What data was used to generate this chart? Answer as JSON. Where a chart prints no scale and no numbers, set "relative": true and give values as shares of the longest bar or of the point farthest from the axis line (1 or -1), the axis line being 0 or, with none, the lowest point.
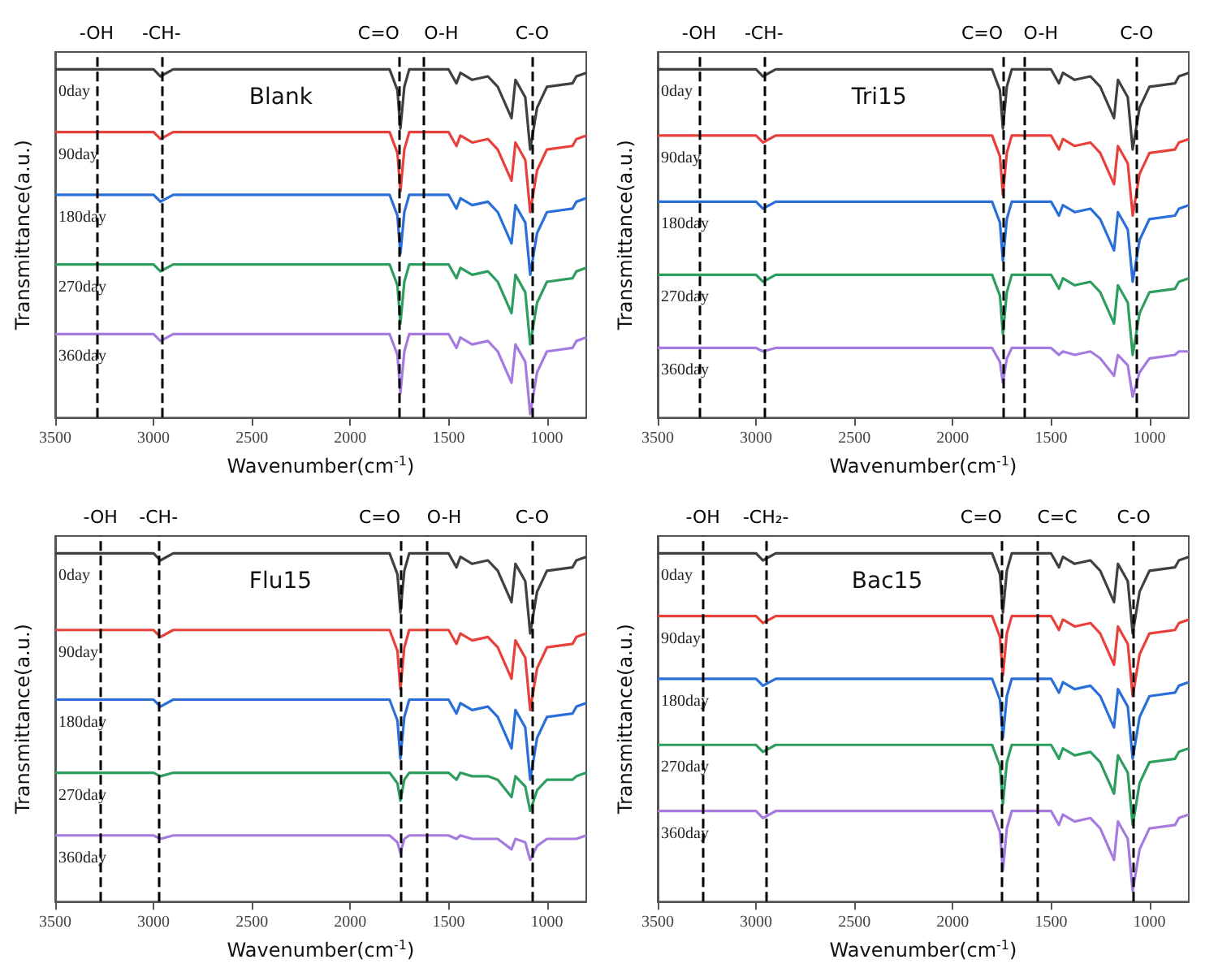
{
  "chart_data": [
    {
      "type": "line",
      "title": "Blank",
      "xlabel": "Wavenumber(cm$^{-1}$)",
      "ylabel": "Transmittance(a.u.)",
      "relative": true,
      "marker": "none",
      "xlim": [
        3500,
        800
      ],
      "xticks": [
        3500,
        3000,
        2500,
        2000,
        1500,
        1000
      ],
      "x": [
        3500,
        3000,
        2965,
        2900,
        1800,
        1760,
        1745,
        1725,
        1700,
        1500,
        1460,
        1440,
        1380,
        1300,
        1250,
        1180,
        1160,
        1110,
        1085,
        1050,
        1000,
        870,
        850,
        800
      ],
      "series": [
        {
          "name": "0day",
          "color": "#404040",
          "values": [
            1,
            1,
            0.98,
            1,
            1,
            0.94,
            0.83,
            0.95,
            1,
            1,
            0.96,
            0.99,
            0.97,
            0.98,
            0.95,
            0.86,
            0.97,
            0.92,
            0.77,
            0.89,
            0.95,
            0.96,
            0.98,
            0.99
          ]
        },
        {
          "name": "90day",
          "color": "#e8403a",
          "values": [
            0.82,
            0.82,
            0.8,
            0.82,
            0.82,
            0.76,
            0.65,
            0.77,
            0.82,
            0.82,
            0.78,
            0.81,
            0.79,
            0.8,
            0.77,
            0.68,
            0.79,
            0.74,
            0.59,
            0.71,
            0.77,
            0.78,
            0.8,
            0.81
          ]
        },
        {
          "name": "180day",
          "color": "#2a6fd8",
          "values": [
            0.64,
            0.64,
            0.62,
            0.64,
            0.64,
            0.58,
            0.47,
            0.59,
            0.64,
            0.64,
            0.6,
            0.63,
            0.61,
            0.62,
            0.59,
            0.5,
            0.61,
            0.56,
            0.41,
            0.53,
            0.59,
            0.6,
            0.62,
            0.63
          ]
        },
        {
          "name": "270day",
          "color": "#2e9e5e",
          "values": [
            0.44,
            0.44,
            0.42,
            0.44,
            0.44,
            0.38,
            0.27,
            0.39,
            0.44,
            0.44,
            0.4,
            0.43,
            0.41,
            0.42,
            0.39,
            0.3,
            0.41,
            0.36,
            0.21,
            0.33,
            0.39,
            0.4,
            0.42,
            0.43
          ]
        },
        {
          "name": "360day",
          "color": "#a57be0",
          "values": [
            0.24,
            0.24,
            0.22,
            0.24,
            0.24,
            0.18,
            0.07,
            0.19,
            0.24,
            0.24,
            0.2,
            0.23,
            0.21,
            0.22,
            0.19,
            0.1,
            0.21,
            0.16,
            0.01,
            0.13,
            0.19,
            0.2,
            0.22,
            0.23
          ]
        }
      ],
      "ref_lines": [
        {
          "axis": "x",
          "value": 3290,
          "label": "-OH",
          "line_style": "dashed",
          "color": "#000000"
        },
        {
          "axis": "x",
          "value": 2960,
          "label": "-CH-",
          "line_style": "dashed",
          "color": "#000000"
        },
        {
          "axis": "x",
          "value": 1750,
          "label": "C=O",
          "line_style": "dashed",
          "color": "#000000"
        },
        {
          "axis": "x",
          "value": 1625,
          "label": "O-H",
          "line_style": "dashed",
          "color": "#000000"
        },
        {
          "axis": "x",
          "value": 1075,
          "label": "C-O",
          "line_style": "dashed",
          "color": "#000000"
        }
      ]
    },
    {
      "type": "line",
      "title": "Tri15",
      "xlabel": "Wavenumber(cm$^{-1}$)",
      "ylabel": "Transmittance(a.u.)",
      "relative": true,
      "marker": "none",
      "xlim": [
        3500,
        800
      ],
      "xticks": [
        3500,
        3000,
        2500,
        2000,
        1500,
        1000
      ],
      "x": [
        3500,
        3000,
        2965,
        2900,
        1800,
        1760,
        1745,
        1725,
        1700,
        1500,
        1460,
        1440,
        1380,
        1300,
        1250,
        1180,
        1160,
        1110,
        1085,
        1050,
        1000,
        870,
        850,
        800
      ],
      "series": [
        {
          "name": "0day",
          "color": "#404040",
          "values": [
            1,
            1,
            0.98,
            1,
            1,
            0.94,
            0.83,
            0.95,
            1,
            1,
            0.96,
            0.99,
            0.97,
            0.98,
            0.95,
            0.86,
            0.97,
            0.92,
            0.77,
            0.89,
            0.95,
            0.96,
            0.98,
            0.99
          ]
        },
        {
          "name": "90day",
          "color": "#e8403a",
          "values": [
            0.81,
            0.81,
            0.79,
            0.81,
            0.81,
            0.75,
            0.64,
            0.76,
            0.81,
            0.81,
            0.77,
            0.8,
            0.78,
            0.79,
            0.76,
            0.67,
            0.78,
            0.73,
            0.58,
            0.7,
            0.76,
            0.77,
            0.79,
            0.8
          ]
        },
        {
          "name": "180day",
          "color": "#2a6fd8",
          "values": [
            0.62,
            0.62,
            0.6,
            0.62,
            0.62,
            0.56,
            0.45,
            0.57,
            0.62,
            0.62,
            0.58,
            0.61,
            0.59,
            0.6,
            0.57,
            0.48,
            0.59,
            0.54,
            0.39,
            0.51,
            0.57,
            0.58,
            0.6,
            0.61
          ]
        },
        {
          "name": "270day",
          "color": "#2e9e5e",
          "values": [
            0.41,
            0.41,
            0.39,
            0.41,
            0.41,
            0.35,
            0.24,
            0.36,
            0.41,
            0.41,
            0.37,
            0.4,
            0.38,
            0.39,
            0.36,
            0.27,
            0.38,
            0.33,
            0.18,
            0.3,
            0.36,
            0.37,
            0.39,
            0.4
          ]
        },
        {
          "name": "360day",
          "color": "#a57be0",
          "values": [
            0.2,
            0.2,
            0.19,
            0.2,
            0.2,
            0.16,
            0.1,
            0.17,
            0.2,
            0.2,
            0.18,
            0.19,
            0.18,
            0.19,
            0.17,
            0.12,
            0.18,
            0.15,
            0.06,
            0.13,
            0.17,
            0.18,
            0.19,
            0.19
          ]
        }
      ],
      "ref_lines": [
        {
          "axis": "x",
          "value": 3290,
          "label": "-OH",
          "line_style": "dashed",
          "color": "#000000"
        },
        {
          "axis": "x",
          "value": 2960,
          "label": "-CH-",
          "line_style": "dashed",
          "color": "#000000"
        },
        {
          "axis": "x",
          "value": 1745,
          "label": "C=O",
          "line_style": "dashed",
          "color": "#000000"
        },
        {
          "axis": "x",
          "value": 1640,
          "label": "O-H",
          "line_style": "dashed",
          "color": "#000000"
        },
        {
          "axis": "x",
          "value": 1065,
          "label": "C-O",
          "line_style": "dashed",
          "color": "#000000"
        }
      ]
    },
    {
      "type": "line",
      "title": "Flu15",
      "xlabel": "Wavenumber(cm$^{-1}$)",
      "ylabel": "Transmittance(a.u.)",
      "relative": true,
      "marker": "none",
      "xlim": [
        3500,
        800
      ],
      "xticks": [
        3500,
        3000,
        2500,
        2000,
        1500,
        1000
      ],
      "x": [
        3500,
        3000,
        2965,
        2900,
        1800,
        1760,
        1745,
        1725,
        1700,
        1500,
        1460,
        1440,
        1380,
        1300,
        1250,
        1180,
        1160,
        1110,
        1085,
        1050,
        1000,
        870,
        850,
        800
      ],
      "series": [
        {
          "name": "0day",
          "color": "#404040",
          "values": [
            1,
            1,
            0.98,
            1,
            1,
            0.94,
            0.83,
            0.95,
            1,
            1,
            0.96,
            0.99,
            0.97,
            0.98,
            0.95,
            0.86,
            0.97,
            0.92,
            0.77,
            0.89,
            0.95,
            0.96,
            0.98,
            0.99
          ]
        },
        {
          "name": "90day",
          "color": "#e8403a",
          "values": [
            0.78,
            0.78,
            0.76,
            0.78,
            0.78,
            0.72,
            0.61,
            0.73,
            0.78,
            0.78,
            0.74,
            0.77,
            0.75,
            0.76,
            0.73,
            0.64,
            0.75,
            0.7,
            0.55,
            0.67,
            0.73,
            0.74,
            0.76,
            0.77
          ]
        },
        {
          "name": "180day",
          "color": "#2a6fd8",
          "values": [
            0.58,
            0.58,
            0.56,
            0.58,
            0.58,
            0.52,
            0.41,
            0.53,
            0.58,
            0.58,
            0.54,
            0.57,
            0.55,
            0.56,
            0.53,
            0.44,
            0.55,
            0.5,
            0.35,
            0.47,
            0.53,
            0.54,
            0.56,
            0.57
          ]
        },
        {
          "name": "270day",
          "color": "#2e9e5e",
          "values": [
            0.37,
            0.37,
            0.36,
            0.37,
            0.37,
            0.34,
            0.29,
            0.35,
            0.37,
            0.37,
            0.35,
            0.37,
            0.36,
            0.36,
            0.35,
            0.3,
            0.36,
            0.33,
            0.26,
            0.32,
            0.35,
            0.35,
            0.36,
            0.37
          ]
        },
        {
          "name": "360day",
          "color": "#a57be0",
          "values": [
            0.19,
            0.19,
            0.18,
            0.19,
            0.19,
            0.17,
            0.14,
            0.18,
            0.19,
            0.19,
            0.18,
            0.19,
            0.18,
            0.18,
            0.18,
            0.15,
            0.18,
            0.17,
            0.12,
            0.16,
            0.18,
            0.18,
            0.18,
            0.19
          ]
        }
      ],
      "ref_lines": [
        {
          "axis": "x",
          "value": 3270,
          "label": "-OH",
          "line_style": "dashed",
          "color": "#000000"
        },
        {
          "axis": "x",
          "value": 2975,
          "label": "-CH-",
          "line_style": "dashed",
          "color": "#000000"
        },
        {
          "axis": "x",
          "value": 1745,
          "label": "C=O",
          "line_style": "dashed",
          "color": "#000000"
        },
        {
          "axis": "x",
          "value": 1610,
          "label": "O-H",
          "line_style": "dashed",
          "color": "#000000"
        },
        {
          "axis": "x",
          "value": 1075,
          "label": "C-O",
          "line_style": "dashed",
          "color": "#000000"
        }
      ]
    },
    {
      "type": "line",
      "title": "Bac15",
      "xlabel": "Wavenumber(cm$^{-1}$)",
      "ylabel": "Transmittance(a.u.)",
      "relative": true,
      "marker": "none",
      "xlim": [
        3500,
        800
      ],
      "xticks": [
        3500,
        3000,
        2500,
        2000,
        1500,
        1000
      ],
      "x": [
        3500,
        3000,
        2965,
        2900,
        1800,
        1760,
        1745,
        1725,
        1700,
        1500,
        1460,
        1440,
        1380,
        1300,
        1250,
        1180,
        1160,
        1110,
        1085,
        1050,
        1000,
        870,
        850,
        800
      ],
      "series": [
        {
          "name": "0day",
          "color": "#404040",
          "values": [
            1,
            1,
            0.98,
            1,
            1,
            0.94,
            0.83,
            0.95,
            1,
            1,
            0.96,
            0.99,
            0.97,
            0.98,
            0.95,
            0.86,
            0.97,
            0.92,
            0.77,
            0.89,
            0.95,
            0.96,
            0.98,
            0.99
          ]
        },
        {
          "name": "90day",
          "color": "#e8403a",
          "values": [
            0.82,
            0.82,
            0.8,
            0.82,
            0.82,
            0.76,
            0.65,
            0.77,
            0.82,
            0.82,
            0.78,
            0.81,
            0.79,
            0.8,
            0.77,
            0.68,
            0.79,
            0.74,
            0.59,
            0.71,
            0.77,
            0.78,
            0.8,
            0.81
          ]
        },
        {
          "name": "180day",
          "color": "#2a6fd8",
          "values": [
            0.64,
            0.64,
            0.62,
            0.64,
            0.64,
            0.58,
            0.47,
            0.59,
            0.64,
            0.64,
            0.6,
            0.63,
            0.61,
            0.62,
            0.59,
            0.5,
            0.61,
            0.56,
            0.41,
            0.53,
            0.59,
            0.6,
            0.62,
            0.63
          ]
        },
        {
          "name": "270day",
          "color": "#2e9e5e",
          "values": [
            0.45,
            0.45,
            0.43,
            0.45,
            0.45,
            0.39,
            0.28,
            0.4,
            0.45,
            0.45,
            0.41,
            0.44,
            0.42,
            0.43,
            0.4,
            0.31,
            0.42,
            0.37,
            0.22,
            0.34,
            0.4,
            0.41,
            0.43,
            0.44
          ]
        },
        {
          "name": "360day",
          "color": "#a57be0",
          "values": [
            0.26,
            0.26,
            0.24,
            0.26,
            0.26,
            0.2,
            0.09,
            0.21,
            0.26,
            0.26,
            0.22,
            0.25,
            0.23,
            0.24,
            0.21,
            0.12,
            0.23,
            0.18,
            0.03,
            0.15,
            0.21,
            0.22,
            0.24,
            0.25
          ]
        }
      ],
      "ref_lines": [
        {
          "axis": "x",
          "value": 3270,
          "label": "-OH",
          "line_style": "dashed",
          "color": "#000000"
        },
        {
          "axis": "x",
          "value": 2950,
          "label": "-CH₂-",
          "line_style": "dashed",
          "color": "#000000"
        },
        {
          "axis": "x",
          "value": 1750,
          "label": "C=O",
          "line_style": "dashed",
          "color": "#000000"
        },
        {
          "axis": "x",
          "value": 1570,
          "label": "C=C",
          "line_style": "dashed",
          "color": "#000000"
        },
        {
          "axis": "x",
          "value": 1080,
          "label": "C-O",
          "line_style": "dashed",
          "color": "#000000"
        }
      ]
    }
  ]
}
